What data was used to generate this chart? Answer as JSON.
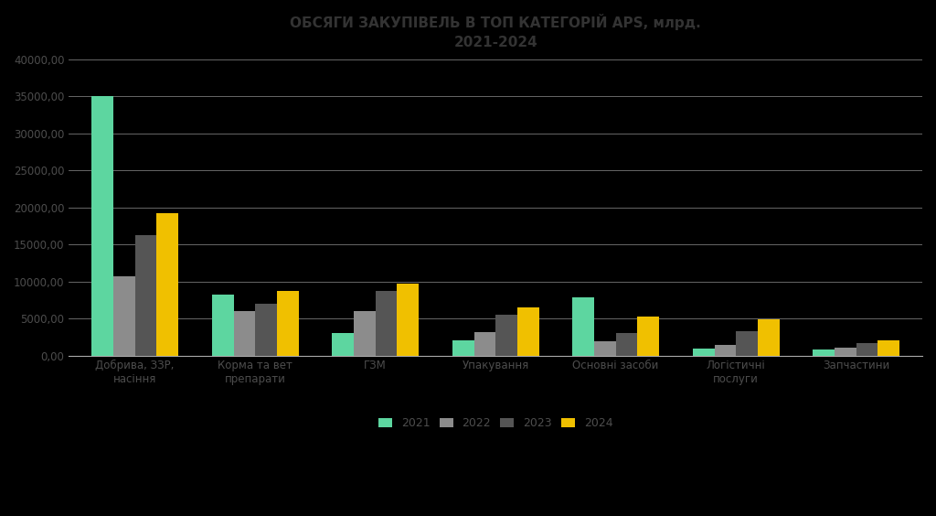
{
  "title_line1": "ОБСЯГИ ЗАКУПІВЕЛЬ В ТОП КАТЕГОРІЙ APS, млрд.",
  "title_line2": "2021-2024",
  "categories": [
    "Добрива, ЗЗР,\nнасіння",
    "Корма та вет\nпрепарати",
    "ГЗМ",
    "Упакування",
    "Основні засоби",
    "Логістичні\nпослуги",
    "Запчастини"
  ],
  "series": {
    "2021": [
      35000,
      8200,
      3000,
      2000,
      7800,
      900,
      800
    ],
    "2022": [
      10700,
      6000,
      6000,
      3200,
      1900,
      1400,
      1100
    ],
    "2023": [
      16300,
      7000,
      8700,
      5500,
      3000,
      3300,
      1700
    ],
    "2024": [
      19200,
      8700,
      9700,
      6500,
      5200,
      4900,
      2000
    ]
  },
  "colors": {
    "2021": "#5DD6A0",
    "2022": "#8C8C8C",
    "2023": "#555555",
    "2024": "#F0C000"
  },
  "ylim": [
    0,
    40000
  ],
  "yticks": [
    0,
    5000,
    10000,
    15000,
    20000,
    25000,
    30000,
    35000,
    40000
  ],
  "background_color": "#000000",
  "text_color": "#4D4D4D",
  "title_color": "#333333",
  "grid_color": "#AAAAAA",
  "title_fontsize": 11,
  "tick_fontsize": 8.5,
  "legend_fontsize": 9,
  "bar_width": 0.18
}
